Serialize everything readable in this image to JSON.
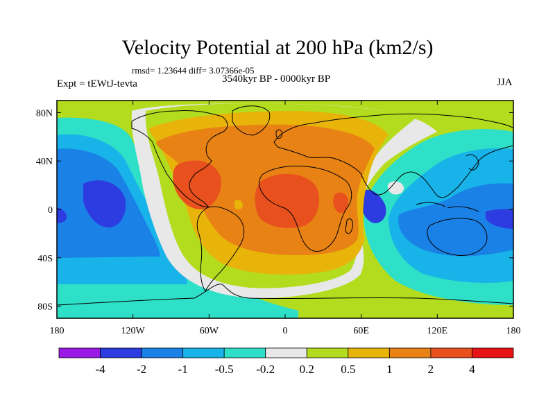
{
  "title": "Velocity Potential at 200 hPa (km2/s)",
  "stats": "rmsd= 1.23644 diff= 3.07366e-05",
  "left_label": "Expt = tEWtJ-tevta",
  "center_label": "3540kyr BP - 0000kyr BP",
  "right_label": "JJA",
  "lat_ticks": [
    {
      "label": "80N",
      "value": 80
    },
    {
      "label": "40N",
      "value": 40
    },
    {
      "label": "0",
      "value": 0
    },
    {
      "label": "40S",
      "value": -40
    },
    {
      "label": "80S",
      "value": -80
    }
  ],
  "lon_ticks": [
    {
      "label": "180",
      "value": -180
    },
    {
      "label": "120W",
      "value": -120
    },
    {
      "label": "60W",
      "value": -60
    },
    {
      "label": "0",
      "value": 0
    },
    {
      "label": "60E",
      "value": 60
    },
    {
      "label": "120E",
      "value": 120
    },
    {
      "label": "180",
      "value": 180
    }
  ],
  "colorbar": {
    "colors": [
      "#9a19e6",
      "#2d3ce0",
      "#1a82e6",
      "#18b3e8",
      "#2ee0c8",
      "#e8e8e8",
      "#b4dc1e",
      "#e8b40a",
      "#e88214",
      "#e8501e",
      "#e61414"
    ],
    "labels": [
      "-4",
      "-2",
      "-1",
      "-0.5",
      "-0.2",
      "0.2",
      "0.5",
      "1",
      "2",
      "4"
    ]
  },
  "map": {
    "lon_range": [
      -180,
      180
    ],
    "lat_range": [
      -90,
      90
    ],
    "field_levels": [
      -2,
      -1,
      -0.5,
      -0.2,
      0.2,
      0.5,
      1,
      2
    ]
  }
}
